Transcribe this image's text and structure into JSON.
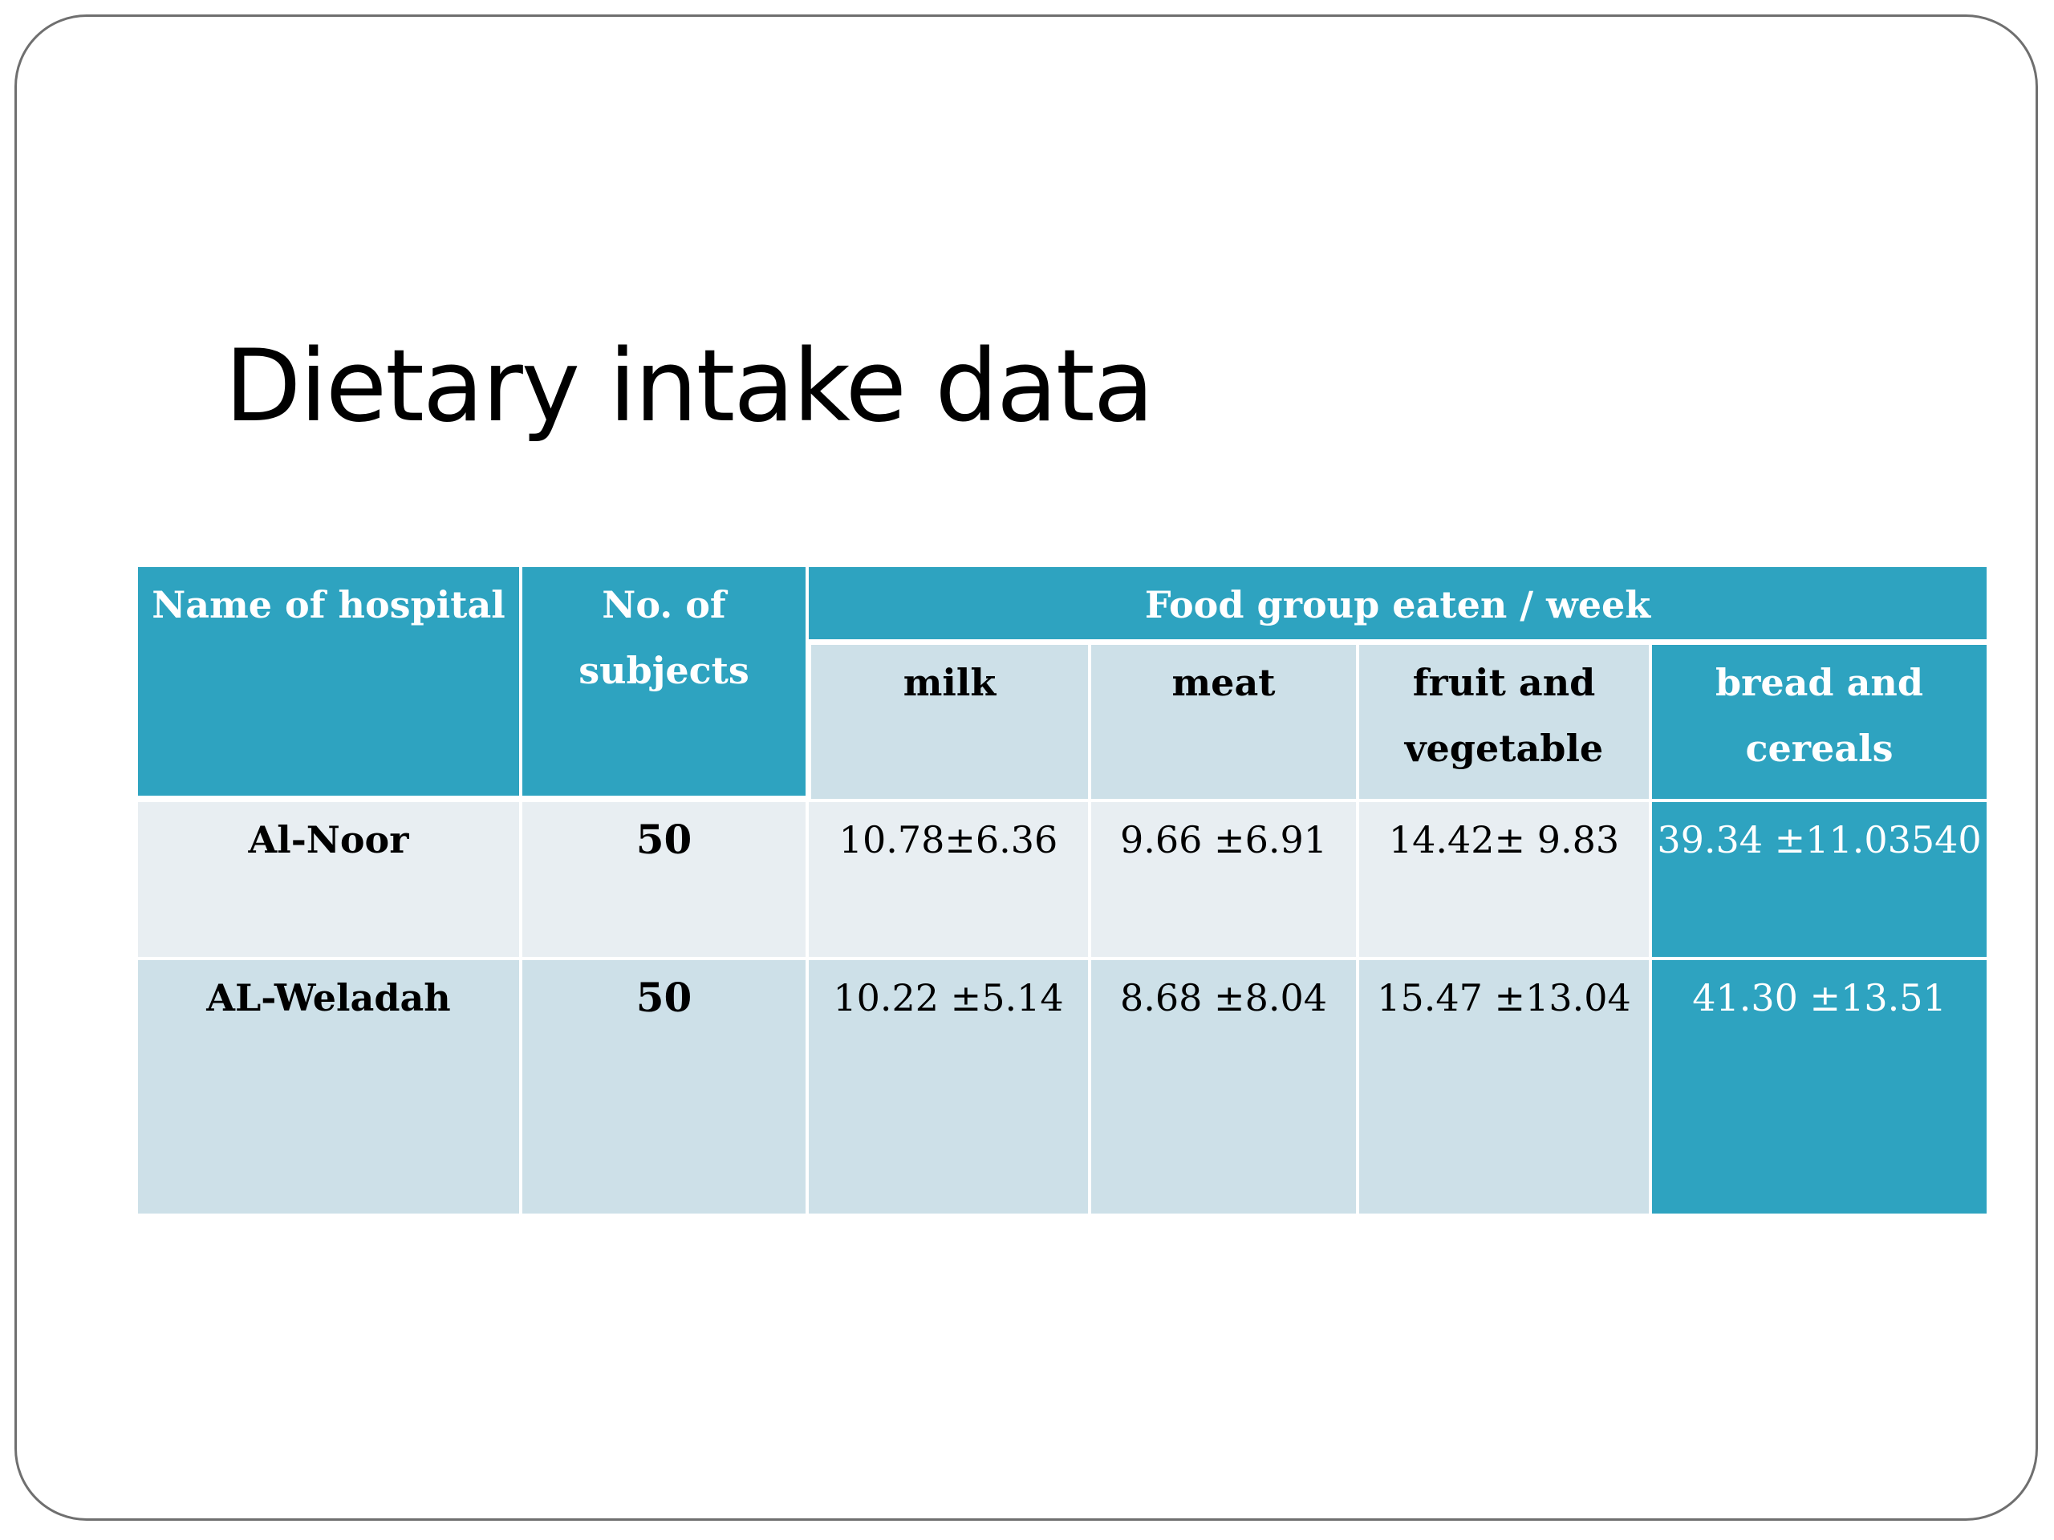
{
  "slide": {
    "title": "Dietary intake data"
  },
  "table": {
    "header": {
      "hospital": "Name of hospital",
      "subjects_line1": "No. of",
      "subjects_line2": "subjects",
      "food_group": "Food group eaten / week",
      "milk": "milk",
      "meat": "meat",
      "fruit_line1": "fruit and",
      "fruit_line2": "vegetable",
      "bread_line1": "bread and",
      "bread_line2": "cereals"
    },
    "rows": [
      {
        "hospital": "Al-Noor",
        "subjects": "50",
        "milk": "10.78±6.36",
        "meat": "9.66 ±6.91",
        "fruit": "14.42± 9.83",
        "bread": "39.34 ±11.03540"
      },
      {
        "hospital": "AL-Weladah",
        "subjects": "50",
        "milk": "10.22 ±5.14",
        "meat": "8.68 ±8.04",
        "fruit": "15.47 ±13.04",
        "bread": "41.30 ±13.51"
      }
    ]
  },
  "colors": {
    "header_bg": "#2ea3c0",
    "subheader_bg": "#cde0e8",
    "row1_bg": "#e8eef2",
    "row2_bg": "#cde0e8",
    "highlight_bg": "#2ea3c0"
  }
}
